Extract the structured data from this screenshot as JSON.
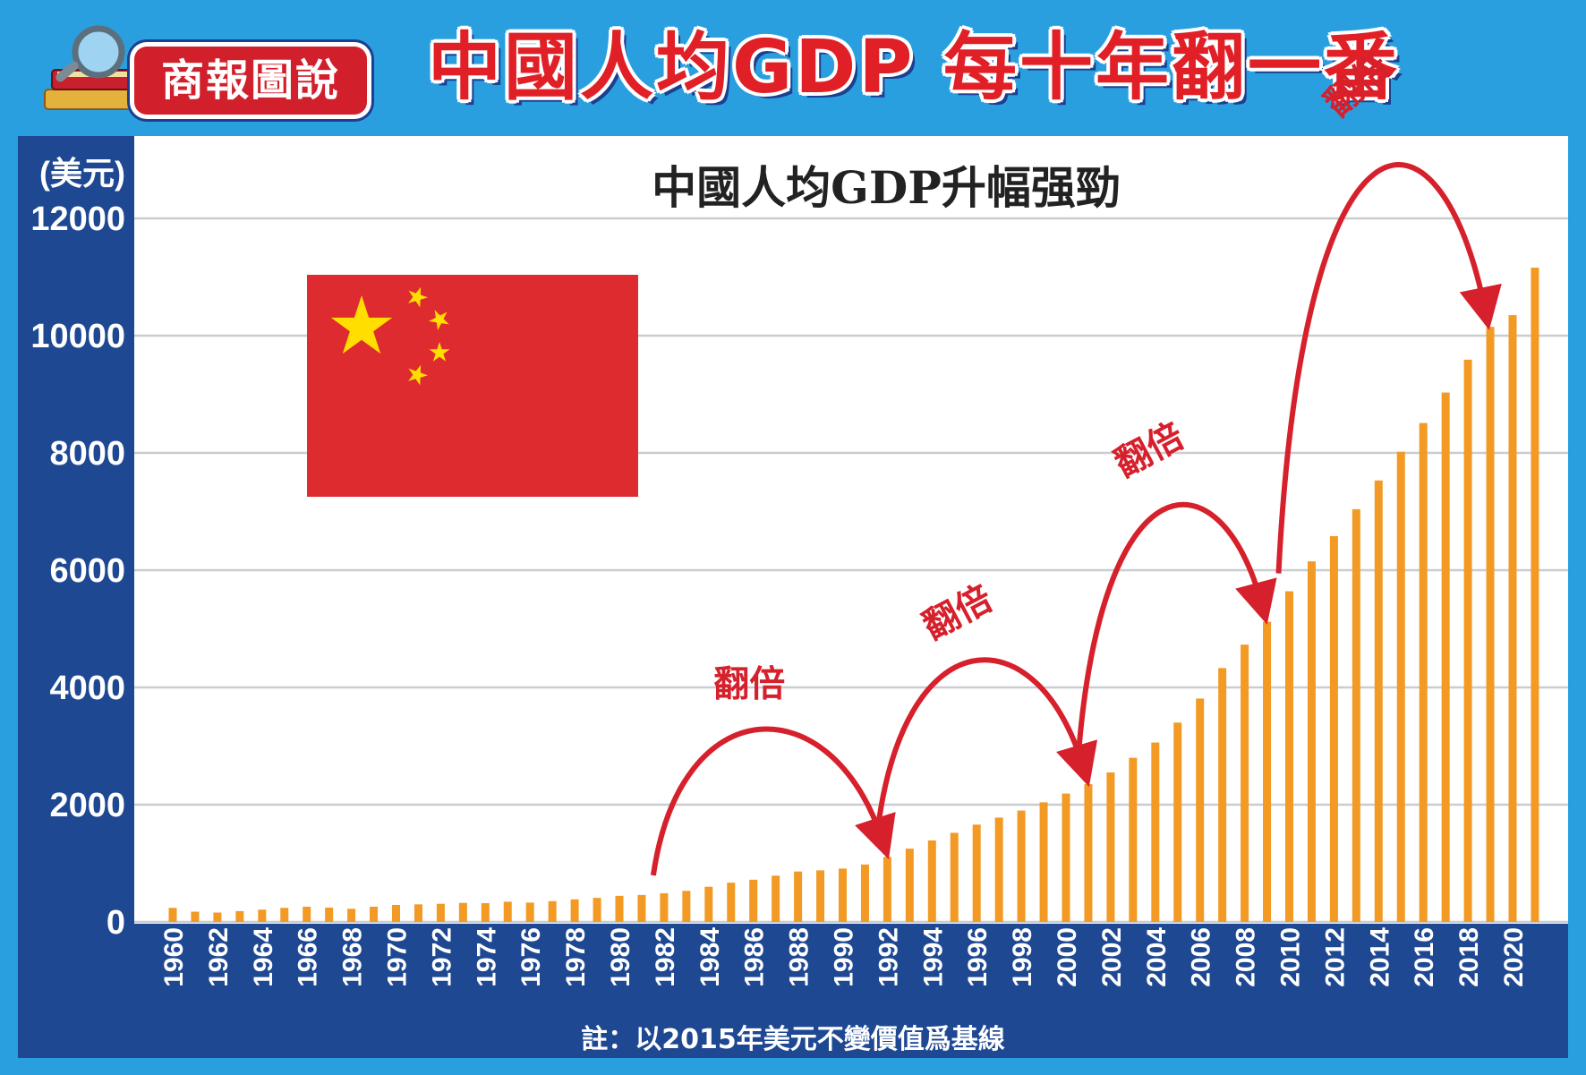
{
  "header": {
    "badge_label": "商報圖說",
    "main_title": "中國人均GDP 每十年翻一番"
  },
  "colors": {
    "frame": "#2a9fe0",
    "panel": "#1e4892",
    "bar": "#f29a24",
    "accent_red": "#d6202b",
    "flag_red": "#de2b30",
    "flag_star": "#ffde00"
  },
  "icons": {
    "badge_illustration": "books-magnifier-icon",
    "flag": "china-flag-icon"
  },
  "chart_data": {
    "type": "bar",
    "title": "中國人均GDP升幅强勁",
    "ylabel": "(美元)",
    "xlabel": "",
    "ylim": [
      0,
      12000
    ],
    "yticks": [
      "12000",
      "10000",
      "8000",
      "6000",
      "4000",
      "2000",
      "0"
    ],
    "x": [
      1960,
      1961,
      1962,
      1963,
      1964,
      1965,
      1966,
      1967,
      1968,
      1969,
      1970,
      1971,
      1972,
      1973,
      1974,
      1975,
      1976,
      1977,
      1978,
      1979,
      1980,
      1981,
      1982,
      1983,
      1984,
      1985,
      1986,
      1987,
      1988,
      1989,
      1990,
      1991,
      1992,
      1993,
      1994,
      1995,
      1996,
      1997,
      1998,
      1999,
      2000,
      2001,
      2002,
      2003,
      2004,
      2005,
      2006,
      2007,
      2008,
      2009,
      2010,
      2011,
      2012,
      2013,
      2014,
      2015,
      2016,
      2017,
      2018,
      2019,
      2020,
      2021
    ],
    "xtick_labels": [
      "1960",
      "1962",
      "1964",
      "1966",
      "1968",
      "1970",
      "1972",
      "1974",
      "1976",
      "1978",
      "1980",
      "1982",
      "1984",
      "1986",
      "1988",
      "1990",
      "1992",
      "1994",
      "1996",
      "1998",
      "2000",
      "2002",
      "2004",
      "2006",
      "2008",
      "2010",
      "2012",
      "2014",
      "2016",
      "2018",
      "2020"
    ],
    "series": [
      {
        "name": "人均GDP",
        "values": [
          240,
          175,
          160,
          185,
          210,
          240,
          260,
          245,
          225,
          260,
          290,
          300,
          310,
          325,
          320,
          345,
          330,
          355,
          385,
          410,
          445,
          460,
          490,
          530,
          600,
          670,
          720,
          790,
          860,
          880,
          910,
          980,
          1110,
          1250,
          1390,
          1520,
          1660,
          1780,
          1900,
          2040,
          2190,
          2350,
          2550,
          2800,
          3060,
          3400,
          3810,
          4330,
          4730,
          5120,
          5640,
          6150,
          6580,
          7040,
          7530,
          8020,
          8510,
          9030,
          9590,
          10150,
          10350,
          11160
        ]
      }
    ],
    "annotations": [
      {
        "label": "翻倍",
        "from_year": 1982,
        "to_year": 1992
      },
      {
        "label": "翻倍",
        "from_year": 1992,
        "to_year": 2001
      },
      {
        "label": "翻倍",
        "from_year": 2001,
        "to_year": 2009
      },
      {
        "label": "翻倍",
        "from_year": 2010,
        "to_year": 2019
      }
    ],
    "note": "註：以2015年美元不變價值爲基線"
  }
}
